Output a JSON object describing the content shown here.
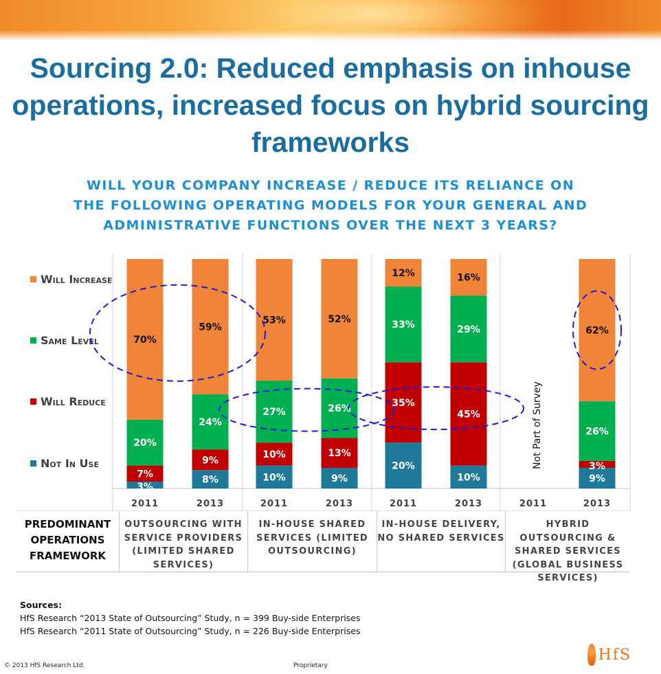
{
  "title": "Sourcing 2.0: Reduced emphasis on inhouse operations, increased focus on hybrid sourcing frameworks",
  "subtitle": "WILL YOUR COMPANY INCREASE / REDUCE ITS RELIANCE ON THE FOLLOWING OPERATING MODELS FOR YOUR GENERAL AND ADMINISTRATIVE FUNCTIONS OVER THE NEXT 3 YEARS?",
  "chart_data": {
    "type": "bar",
    "stacked": true,
    "normalized": true,
    "categories": [
      "2011",
      "2013",
      "2011",
      "2013",
      "2011",
      "2013",
      "2011",
      "2013"
    ],
    "series": [
      {
        "name": "Not In Use",
        "color": "#1f7a99",
        "values": [
          3,
          8,
          10,
          9,
          20,
          10,
          null,
          9
        ]
      },
      {
        "name": "Will Reduce",
        "color": "#c00000",
        "values": [
          7,
          9,
          10,
          13,
          35,
          45,
          null,
          3
        ]
      },
      {
        "name": "Same Level",
        "color": "#00b050",
        "values": [
          20,
          24,
          27,
          26,
          33,
          29,
          null,
          26
        ]
      },
      {
        "name": "Will Increase",
        "color": "#f08439",
        "values": [
          70,
          59,
          53,
          52,
          12,
          16,
          null,
          62
        ]
      }
    ],
    "value_suffix": "%",
    "legend_position": "left",
    "not_in_survey_label": "Not Part of Survey",
    "highlights": [
      {
        "from": 0,
        "to": 1,
        "series": "Will Increase"
      },
      {
        "from": 2,
        "to": 3,
        "series": "Same Level"
      },
      {
        "from": 4,
        "to": 5,
        "series": "Will Reduce"
      },
      {
        "from": 7,
        "to": 7,
        "series": "Will Increase"
      }
    ]
  },
  "framework": {
    "header": "PREDOMINANT OPERATIONS FRAMEWORK",
    "groups": [
      "OUTSOURCING WITH SERVICE PROVIDERS (LIMITED SHARED SERVICES)",
      "IN-HOUSE SHARED SERVICES (LIMITED OUTSOURCING)",
      "IN-HOUSE DELIVERY, NO SHARED SERVICES",
      "HYBRID OUTSOURCING & SHARED SERVICES (GLOBAL BUSINESS SERVICES)"
    ]
  },
  "sources": {
    "heading": "Sources:",
    "lines": [
      "HfS Research “2013 State of Outsourcing” Study, n = 399 Buy-side Enterprises",
      "HfS Research “2011 State of Outsourcing” Study, n = 226 Buy-side Enterprises"
    ]
  },
  "footer": {
    "copyright": "© 2013 HfS Research Ltd.",
    "classification": "Proprietary",
    "logo_text": "HfS"
  }
}
